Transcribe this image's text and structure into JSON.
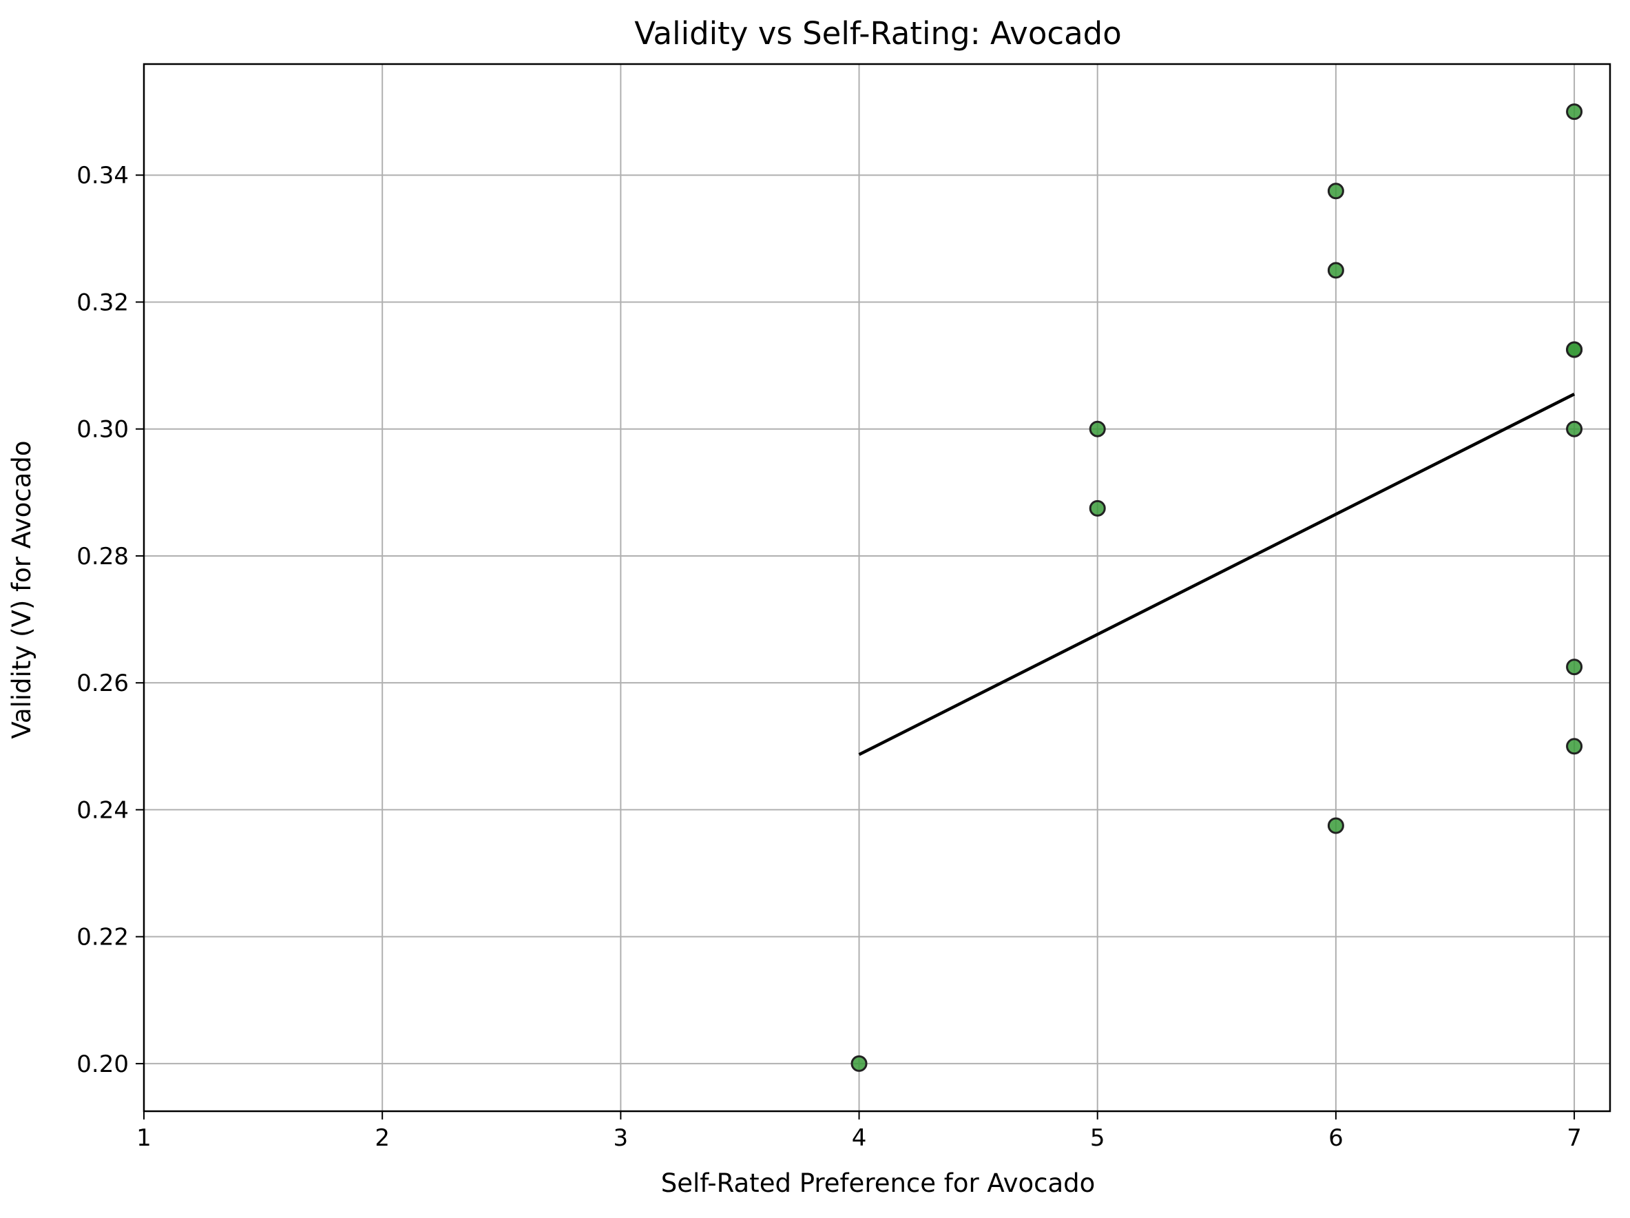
{
  "chart_data": {
    "type": "scatter",
    "title": "Validity vs Self-Rating: Avocado",
    "xlabel": "Self-Rated Preference for Avocado",
    "ylabel": "Validity (V) for Avocado",
    "xlim": [
      1,
      7.15
    ],
    "ylim": [
      0.1925,
      0.3575
    ],
    "xticks": [
      1,
      2,
      3,
      4,
      5,
      6,
      7
    ],
    "xtick_labels": [
      "1",
      "2",
      "3",
      "4",
      "5",
      "6",
      "7"
    ],
    "yticks": [
      0.2,
      0.22,
      0.24,
      0.26,
      0.28,
      0.3,
      0.32,
      0.34
    ],
    "ytick_labels": [
      "0.20",
      "0.22",
      "0.24",
      "0.26",
      "0.28",
      "0.30",
      "0.32",
      "0.34"
    ],
    "grid": true,
    "points": [
      {
        "x": 4,
        "y": 0.2
      },
      {
        "x": 5,
        "y": 0.3
      },
      {
        "x": 5,
        "y": 0.2875
      },
      {
        "x": 6,
        "y": 0.3375
      },
      {
        "x": 6,
        "y": 0.325
      },
      {
        "x": 6,
        "y": 0.2375
      },
      {
        "x": 7,
        "y": 0.35
      },
      {
        "x": 7,
        "y": 0.3125
      },
      {
        "x": 7,
        "y": 0.3125
      },
      {
        "x": 7,
        "y": 0.3
      },
      {
        "x": 7,
        "y": 0.2625
      },
      {
        "x": 7,
        "y": 0.25
      }
    ],
    "trendline": {
      "x": [
        4,
        7
      ],
      "y": [
        0.2487,
        0.3055
      ]
    },
    "colors": {
      "point_fill": "#3a9b3a",
      "point_edge": "#222222",
      "trendline": "#000000",
      "grid": "#b0b0b0",
      "axes": "#000000"
    }
  }
}
